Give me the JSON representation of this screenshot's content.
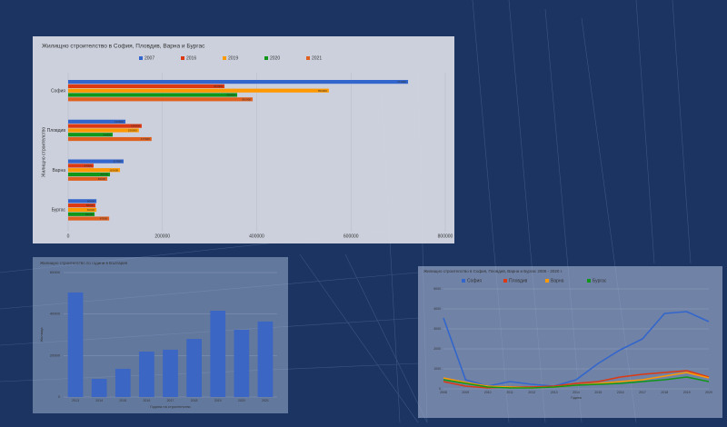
{
  "chart_data": [
    {
      "type": "hbar",
      "title": "Жилищно строителство в София, Пловдив, Варна и Бургас",
      "ylabel": "Жилищно строителство",
      "categories": [
        "София",
        "Пловдив",
        "Варна",
        "Бургас"
      ],
      "series": [
        {
          "name": "2007",
          "color": "#3366cc",
          "values": [
            721000,
            121500,
            117600,
            60000
          ]
        },
        {
          "name": "2016",
          "color": "#dc3912",
          "values": [
            331600,
            156000,
            54000,
            58000
          ]
        },
        {
          "name": "2019",
          "color": "#ff9900",
          "values": [
            553000,
            150000,
            110000,
            60000
          ]
        },
        {
          "name": "2020",
          "color": "#109618",
          "values": [
            358600,
            94500,
            88700,
            56000
          ]
        },
        {
          "name": "2021",
          "color": "#e06020",
          "values": [
            391400,
            177000,
            83000,
            87000
          ]
        }
      ],
      "xlim": [
        0,
        800000
      ],
      "xticks": [
        0,
        200000,
        400000,
        600000,
        800000
      ],
      "grid": true
    },
    {
      "type": "bar",
      "title": "Жилищно строителство по години в България",
      "xlabel": "Година на строителство",
      "ylabel": "Жилища",
      "categories": [
        "2013",
        "2014",
        "2015",
        "2016",
        "2017",
        "2018",
        "2019",
        "2020",
        "2021"
      ],
      "values": [
        50400,
        8760,
        13600,
        21900,
        22800,
        28000,
        41600,
        32400,
        36400
      ],
      "color": "#3b66c4",
      "ylim": [
        0,
        60000
      ],
      "yticks": [
        0,
        20000,
        40000,
        60000
      ],
      "grid": true
    },
    {
      "type": "line",
      "title": "Жилищно строителство в София, Пловдив, Варна и Бургас 2006 - 2020 г.",
      "xlabel": "Година",
      "categories": [
        "2008",
        "2009",
        "2010",
        "2011",
        "2012",
        "2013",
        "2014",
        "2015",
        "2016",
        "2017",
        "2018",
        "2019",
        "2020"
      ],
      "series": [
        {
          "name": "София",
          "color": "#3366cc",
          "values": [
            3545,
            455,
            136,
            364,
            227,
            136,
            455,
            1273,
            1955,
            2500,
            3773,
            3864,
            3364
          ]
        },
        {
          "name": "Пловдив",
          "color": "#dc3912",
          "values": [
            364,
            136,
            45,
            91,
            91,
            136,
            273,
            364,
            591,
            727,
            818,
            909,
            591
          ]
        },
        {
          "name": "Варна",
          "color": "#ff9900",
          "values": [
            545,
            318,
            136,
            91,
            45,
            91,
            182,
            273,
            364,
            455,
            636,
            818,
            545
          ]
        },
        {
          "name": "Бургас",
          "color": "#109618",
          "values": [
            455,
            273,
            91,
            45,
            45,
            91,
            182,
            227,
            273,
            364,
            455,
            591,
            364
          ]
        }
      ],
      "ylim": [
        0,
        5000
      ],
      "yticks": [
        0,
        1000,
        2000,
        3000,
        4000,
        5000
      ],
      "grid": true
    }
  ]
}
